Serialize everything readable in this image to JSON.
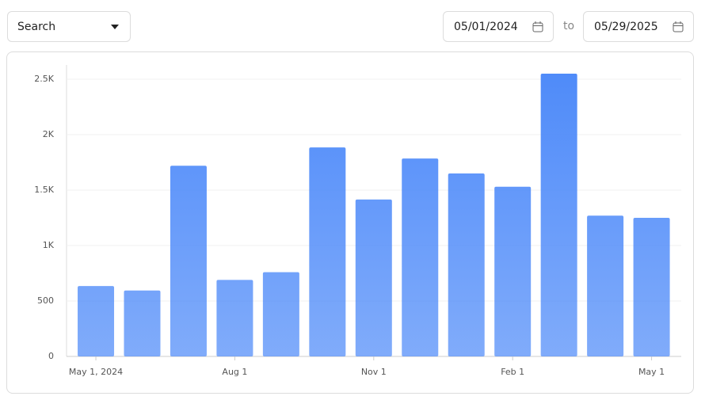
{
  "controls": {
    "dropdown": "Search",
    "start_date": "05/01/2024",
    "separator": "to",
    "end_date": "05/29/2025"
  },
  "chart_data": {
    "type": "bar",
    "color": "#4f8bf9",
    "categories": [
      "May 1, 2024",
      null,
      null,
      "Aug 1",
      null,
      null,
      "Nov 1",
      null,
      null,
      "Feb 1",
      null,
      null,
      "May 1"
    ],
    "values": [
      635,
      595,
      1720,
      690,
      760,
      1885,
      1415,
      1785,
      1650,
      1530,
      2550,
      1270,
      1250
    ],
    "ylim": [
      0,
      2500
    ],
    "yticks": [
      0,
      500,
      {
        "value": 1000,
        "label": "1K"
      },
      {
        "value": 1500,
        "label": "1.5K"
      },
      {
        "value": 2000,
        "label": "2K"
      },
      {
        "value": 2500,
        "label": "2.5K"
      }
    ],
    "grid": true
  }
}
